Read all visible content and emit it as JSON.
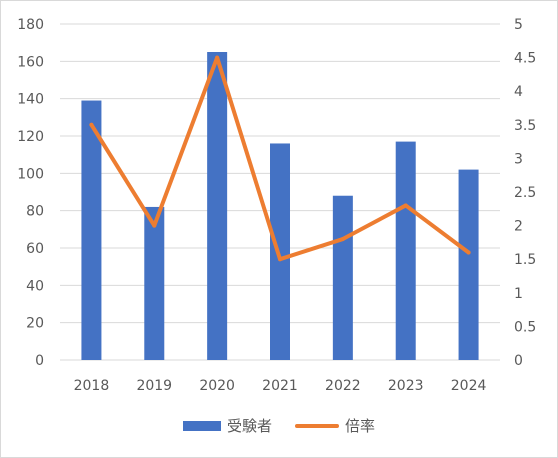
{
  "chart_data": {
    "type": "bar",
    "categories": [
      "2018",
      "2019",
      "2020",
      "2021",
      "2022",
      "2023",
      "2024"
    ],
    "series": [
      {
        "name": "受験者",
        "type": "bar",
        "axis": "left",
        "color": "#4472C4",
        "values": [
          139,
          82,
          165,
          116,
          88,
          117,
          102
        ]
      },
      {
        "name": "倍率",
        "type": "line",
        "axis": "right",
        "color": "#ED7D31",
        "values": [
          3.5,
          2.0,
          4.5,
          1.5,
          1.8,
          2.3,
          1.6
        ]
      }
    ],
    "y_left": {
      "min": 0,
      "max": 180,
      "ticks": [
        "0",
        "20",
        "40",
        "60",
        "80",
        "100",
        "120",
        "140",
        "160",
        "180"
      ]
    },
    "y_right": {
      "min": 0,
      "max": 5,
      "ticks": [
        "0",
        "0.5",
        "1",
        "1.5",
        "2",
        "2.5",
        "3",
        "3.5",
        "4",
        "4.5",
        "5"
      ]
    },
    "grid": true,
    "legend_position": "bottom"
  }
}
